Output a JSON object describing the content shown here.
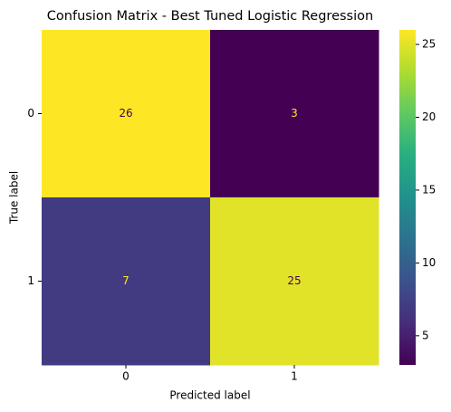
{
  "chart_data": {
    "type": "heatmap",
    "title": "Confusion Matrix - Best Tuned Logistic Regression",
    "x_label": "Predicted label",
    "y_label": "True label",
    "x_categories": [
      "0",
      "1"
    ],
    "y_categories": [
      "0",
      "1"
    ],
    "values": [
      [
        26,
        3
      ],
      [
        7,
        25
      ]
    ],
    "colormap": "viridis",
    "colorbar_lim": [
      3,
      26
    ],
    "colorbar_ticks": [
      5,
      10,
      15,
      20,
      25
    ]
  }
}
